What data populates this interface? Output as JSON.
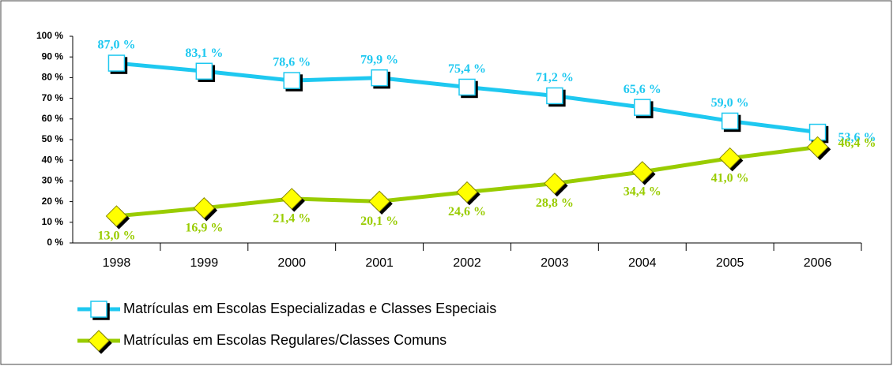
{
  "chart_data": {
    "type": "line",
    "categories": [
      "1998",
      "1999",
      "2000",
      "2001",
      "2002",
      "2003",
      "2004",
      "2005",
      "2006"
    ],
    "series": [
      {
        "name": "Matrículas em Escolas Especializadas e Classes Especiais",
        "color": "#1ec8f0",
        "marker": "square",
        "values": [
          87.0,
          83.1,
          78.6,
          79.9,
          75.4,
          71.2,
          65.6,
          59.0,
          53.6
        ],
        "value_labels": [
          "87,0 %",
          "83,1 %",
          "78,6 %",
          "79,9 %",
          "75,4 %",
          "71,2 %",
          "65,6 %",
          "59,0 %",
          "53,6 %"
        ]
      },
      {
        "name": "Matrículas em Escolas Regulares/Classes Comuns",
        "color": "#99cc00",
        "marker": "diamond",
        "values": [
          13.0,
          16.9,
          21.4,
          20.1,
          24.6,
          28.8,
          34.4,
          41.0,
          46.4
        ],
        "value_labels": [
          "13,0 %",
          "16,9 %",
          "21,4 %",
          "20,1 %",
          "24,6 %",
          "28,8 %",
          "34,4 %",
          "41,0 %",
          "46,4 %"
        ]
      }
    ],
    "ylim": [
      0,
      100
    ],
    "yticks": [
      {
        "value": 0,
        "label": "0 %"
      },
      {
        "value": 10,
        "label": "10 %"
      },
      {
        "value": 20,
        "label": "20 %"
      },
      {
        "value": 30,
        "label": "30 %"
      },
      {
        "value": 40,
        "label": "40 %"
      },
      {
        "value": 50,
        "label": "50 %"
      },
      {
        "value": 60,
        "label": "60 %"
      },
      {
        "value": 70,
        "label": "70 %"
      },
      {
        "value": 80,
        "label": "80 %"
      },
      {
        "value": 90,
        "label": "90 %"
      },
      {
        "value": 100,
        "label": "100 %"
      }
    ],
    "legend": "bottom",
    "grid": false
  }
}
